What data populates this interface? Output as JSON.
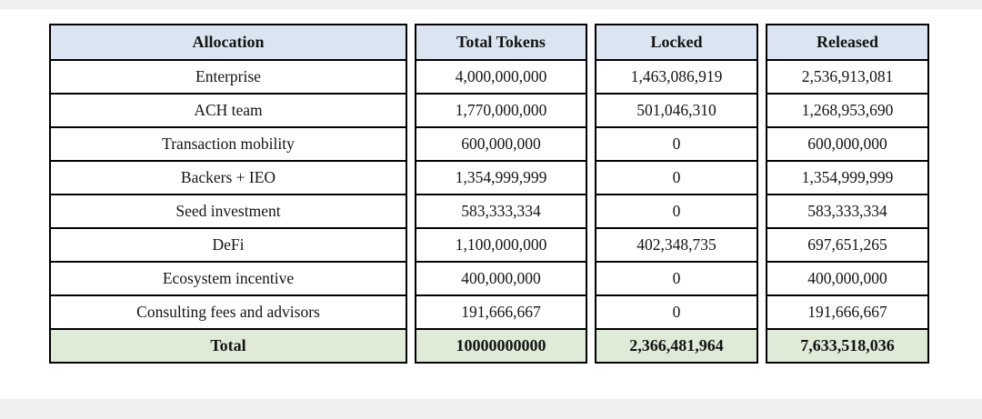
{
  "colors": {
    "header_bg": "#dbe5f1",
    "total_bg": "#dfead7",
    "border": "#000000",
    "background_band": "#efefef"
  },
  "table": {
    "headers": [
      "Allocation",
      "Total Tokens",
      "Locked",
      "Released"
    ],
    "rows": [
      [
        "Enterprise",
        "4,000,000,000",
        "1,463,086,919",
        "2,536,913,081"
      ],
      [
        "ACH team",
        "1,770,000,000",
        "501,046,310",
        "1,268,953,690"
      ],
      [
        "Transaction mobility",
        "600,000,000",
        "0",
        "600,000,000"
      ],
      [
        "Backers + IEO",
        "1,354,999,999",
        "0",
        "1,354,999,999"
      ],
      [
        "Seed investment",
        "583,333,334",
        "0",
        "583,333,334"
      ],
      [
        "DeFi",
        "1,100,000,000",
        "402,348,735",
        "697,651,265"
      ],
      [
        "Ecosystem incentive",
        "400,000,000",
        "0",
        "400,000,000"
      ],
      [
        "Consulting fees and advisors",
        "191,666,667",
        "0",
        "191,666,667"
      ]
    ],
    "total_row": [
      "Total",
      "10000000000",
      "2,366,481,964",
      "7,633,518,036"
    ]
  },
  "chart_data": {
    "type": "table",
    "columns": [
      "Allocation",
      "Total Tokens",
      "Locked",
      "Released"
    ],
    "rows": [
      {
        "allocation": "Enterprise",
        "total_tokens": 4000000000,
        "locked": 1463086919,
        "released": 2536913081
      },
      {
        "allocation": "ACH team",
        "total_tokens": 1770000000,
        "locked": 501046310,
        "released": 1268953690
      },
      {
        "allocation": "Transaction mobility",
        "total_tokens": 600000000,
        "locked": 0,
        "released": 600000000
      },
      {
        "allocation": "Backers + IEO",
        "total_tokens": 1354999999,
        "locked": 0,
        "released": 1354999999
      },
      {
        "allocation": "Seed investment",
        "total_tokens": 583333334,
        "locked": 0,
        "released": 583333334
      },
      {
        "allocation": "DeFi",
        "total_tokens": 1100000000,
        "locked": 402348735,
        "released": 697651265
      },
      {
        "allocation": "Ecosystem incentive",
        "total_tokens": 400000000,
        "locked": 0,
        "released": 400000000
      },
      {
        "allocation": "Consulting fees and advisors",
        "total_tokens": 191666667,
        "locked": 0,
        "released": 191666667
      }
    ],
    "total": {
      "allocation": "Total",
      "total_tokens": 10000000000,
      "locked": 2366481964,
      "released": 7633518036
    }
  }
}
